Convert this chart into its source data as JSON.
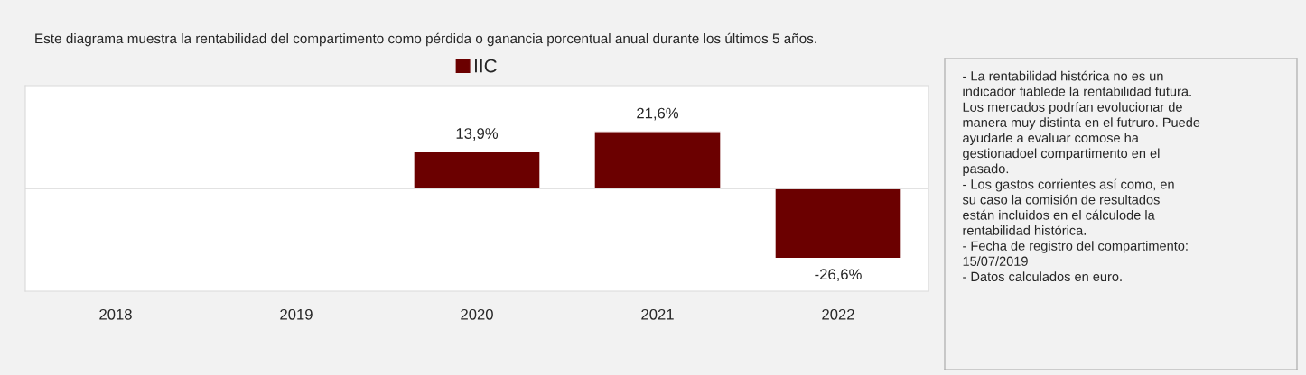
{
  "chart_data": {
    "type": "bar",
    "title": "Este diagrama muestra la rentabilidad del compartimento como pérdida o ganancia porcentual anual durante los últimos 5 años.",
    "categories": [
      "2018",
      "2019",
      "2020",
      "2021",
      "2022"
    ],
    "series": [
      {
        "name": "IIC",
        "color": "#6b0000",
        "values": [
          null,
          null,
          13.9,
          21.6,
          -26.6
        ],
        "value_labels": [
          null,
          null,
          "13,9%",
          "21,6%",
          "-26,6%"
        ]
      }
    ],
    "ylim": [
      -39,
      39
    ],
    "tick_labels": "x",
    "legend": "top",
    "grid": false,
    "annotations": [
      "- La rentabilidad histórica no es un\nindicador fiablede la rentabilidad futura.\nLos mercados podrían evolucionar de\nmanera muy distinta en el futruro. Puede\nayudarle a evaluar comose ha\ngestionadoel compartimento en el\npasado.\n- Los gastos corrientes así como, en\nsu caso la comisión de resultados\nestán incluidos en el cálculode la\nrentabilidad histórica.\n- Fecha de registro del compartimento:\n15/07/2019\n- Datos calculados en euro."
    ]
  }
}
